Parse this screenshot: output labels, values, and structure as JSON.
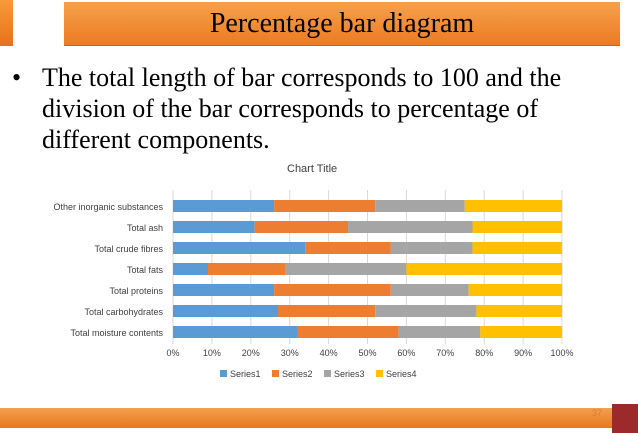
{
  "slide": {
    "title": "Percentage bar diagram",
    "bullet": "The total length of bar corresponds to 100 and the division of the  bar corresponds to percentage of different components.",
    "bullet_symbol": "•",
    "page_number": "37"
  },
  "colors": {
    "accent": "#ed7d31",
    "series1": "#5b9bd5",
    "series2": "#ed7d31",
    "series3": "#a5a5a5",
    "series4": "#ffc000",
    "footer_right": "#9c2a2a"
  },
  "chart_data": {
    "type": "bar",
    "orientation": "horizontal",
    "stacking": "percent",
    "title": "Chart Title",
    "categories": [
      "Other inorganic substances",
      "Total ash",
      "Total crude fibres",
      "Total fats",
      "Total proteins",
      "Total carbohydrates",
      "Total moisture contents"
    ],
    "series": [
      {
        "name": "Series1",
        "values": [
          26,
          21,
          34,
          9,
          26,
          27,
          32
        ]
      },
      {
        "name": "Series2",
        "values": [
          26,
          24,
          22,
          20,
          30,
          25,
          26
        ]
      },
      {
        "name": "Series3",
        "values": [
          23,
          32,
          21,
          31,
          20,
          26,
          21
        ]
      },
      {
        "name": "Series4",
        "values": [
          25,
          23,
          23,
          40,
          24,
          22,
          21
        ]
      }
    ],
    "x_ticks": [
      "0%",
      "10%",
      "20%",
      "30%",
      "40%",
      "50%",
      "60%",
      "70%",
      "80%",
      "90%",
      "100%"
    ],
    "xlim": [
      0,
      100
    ],
    "grid": true,
    "legend_position": "bottom"
  }
}
